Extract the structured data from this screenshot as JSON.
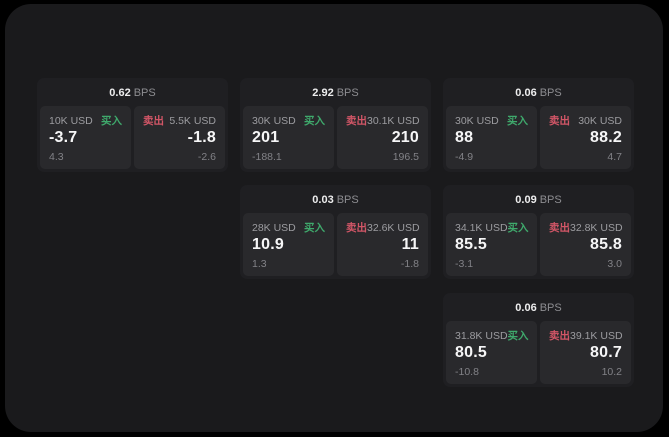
{
  "labels": {
    "bps_unit": "BPS",
    "buy": "买入",
    "sell": "卖出"
  },
  "colors": {
    "buy_green": "#3fa96c",
    "sell_red": "#d25667",
    "window_bg": "#1a1a1c",
    "card_bg": "#1f1f22",
    "panel_bg": "#29292c"
  },
  "cards": [
    {
      "bps": "0.62",
      "buy": {
        "amount": "10K USD",
        "value": "-3.7",
        "delta": "4.3"
      },
      "sell": {
        "amount": "5.5K USD",
        "value": "-1.8",
        "delta": "-2.6"
      }
    },
    {
      "bps": "2.92",
      "buy": {
        "amount": "30K USD",
        "value": "201",
        "delta": "-188.1"
      },
      "sell": {
        "amount": "30.1K USD",
        "value": "210",
        "delta": "196.5"
      }
    },
    {
      "bps": "0.06",
      "buy": {
        "amount": "30K USD",
        "value": "88",
        "delta": "-4.9"
      },
      "sell": {
        "amount": "30K USD",
        "value": "88.2",
        "delta": "4.7"
      }
    },
    {
      "bps": "0.03",
      "buy": {
        "amount": "28K USD",
        "value": "10.9",
        "delta": "1.3"
      },
      "sell": {
        "amount": "32.6K USD",
        "value": "11",
        "delta": "-1.8"
      }
    },
    {
      "bps": "0.09",
      "buy": {
        "amount": "34.1K USD",
        "value": "85.5",
        "delta": "-3.1"
      },
      "sell": {
        "amount": "32.8K USD",
        "value": "85.8",
        "delta": "3.0"
      }
    },
    {
      "bps": "0.06",
      "buy": {
        "amount": "31.8K USD",
        "value": "80.5",
        "delta": "-10.8"
      },
      "sell": {
        "amount": "39.1K USD",
        "value": "80.7",
        "delta": "10.2"
      }
    }
  ]
}
